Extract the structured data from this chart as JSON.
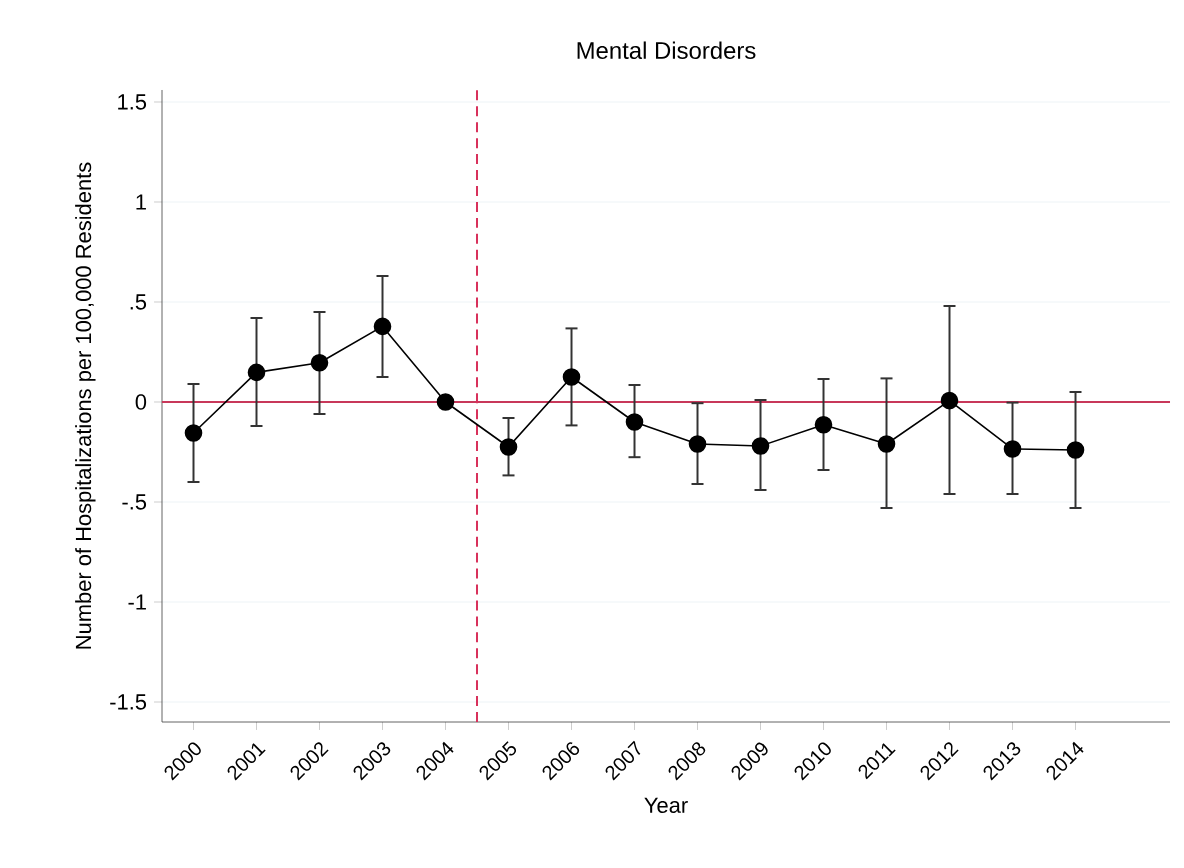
{
  "chart_data": {
    "type": "line",
    "title": "Mental Disorders",
    "xlabel": "Year",
    "ylabel": "Number of Hospitalizations per 100,000 Residents",
    "x": [
      2000,
      2001,
      2002,
      2003,
      2004,
      2005,
      2006,
      2007,
      2008,
      2009,
      2010,
      2011,
      2012,
      2013,
      2014
    ],
    "values": [
      -0.155,
      0.148,
      0.196,
      0.378,
      0,
      -0.225,
      0.125,
      -0.1,
      -0.21,
      -0.22,
      -0.114,
      -0.21,
      0.007,
      -0.235,
      -0.24
    ],
    "errors": [
      [
        -0.4,
        0.09
      ],
      [
        -0.12,
        0.42
      ],
      [
        -0.06,
        0.45
      ],
      [
        0.125,
        0.63
      ],
      null,
      [
        -0.367,
        -0.08
      ],
      [
        -0.117,
        0.368
      ],
      [
        -0.276,
        0.085
      ],
      [
        -0.41,
        -0.006
      ],
      [
        -0.44,
        0.01
      ],
      [
        -0.34,
        0.115
      ],
      [
        -0.53,
        0.118
      ],
      [
        -0.46,
        0.48
      ],
      [
        -0.46,
        -0.003
      ],
      [
        -0.53,
        0.05
      ]
    ],
    "color": "#000000",
    "marker": "circle",
    "line_style": "solid",
    "xlim": [
      1999.5,
      2015.5
    ],
    "xticks": [
      2000,
      2001,
      2002,
      2003,
      2004,
      2005,
      2006,
      2007,
      2008,
      2009,
      2010,
      2011,
      2012,
      2013,
      2014
    ],
    "ylim": [
      -1.6,
      1.56
    ],
    "yticks": [
      {
        "value": -1.5,
        "label": "-1.5"
      },
      {
        "value": -1,
        "label": "-1"
      },
      {
        "value": -0.5,
        "label": "-.5"
      },
      0,
      {
        "value": 0.5,
        "label": ".5"
      },
      1,
      1.5
    ],
    "grid": "y",
    "ref_lines": [
      {
        "axis": "y",
        "value": 0,
        "color": "#c8385a",
        "line_style": "solid"
      },
      {
        "axis": "x",
        "value": 2004.5,
        "color": "#d8315b",
        "line_style": "dashed"
      }
    ]
  }
}
